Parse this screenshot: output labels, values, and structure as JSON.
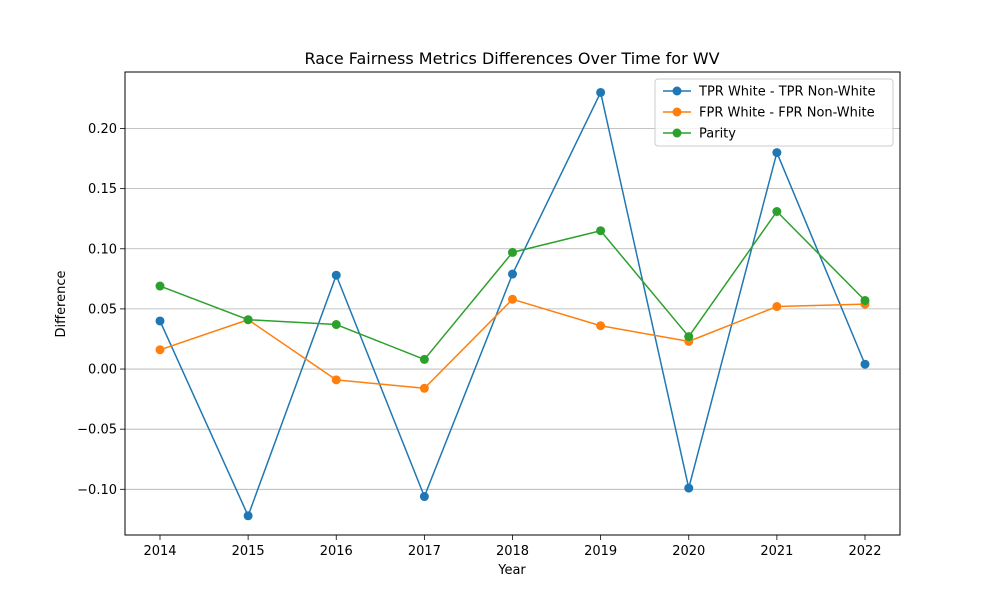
{
  "chart_data": {
    "type": "line",
    "title": "Race Fairness Metrics Differences Over Time for WV",
    "xlabel": "Year",
    "ylabel": "Difference",
    "x": [
      "2014",
      "2015",
      "2016",
      "2017",
      "2018",
      "2019",
      "2020",
      "2021",
      "2022"
    ],
    "yticks": [
      "−0.10",
      "−0.05",
      "0.00",
      "0.05",
      "0.10",
      "0.15",
      "0.20"
    ],
    "ylim": [
      -0.138,
      0.247
    ],
    "grid": "horizontal",
    "legend_position": "top-right",
    "series": [
      {
        "name": "TPR White - TPR Non-White",
        "color": "#1f77b4",
        "values": [
          0.04,
          -0.122,
          0.078,
          -0.106,
          0.079,
          0.23,
          -0.099,
          0.18,
          0.004
        ]
      },
      {
        "name": "FPR White - FPR Non-White",
        "color": "#ff7f0e",
        "values": [
          0.016,
          0.041,
          -0.009,
          -0.016,
          0.058,
          0.036,
          0.023,
          0.052,
          0.054
        ]
      },
      {
        "name": "Parity",
        "color": "#2ca02c",
        "values": [
          0.069,
          0.041,
          0.037,
          0.008,
          0.097,
          0.115,
          0.027,
          0.131,
          0.057
        ]
      }
    ]
  }
}
